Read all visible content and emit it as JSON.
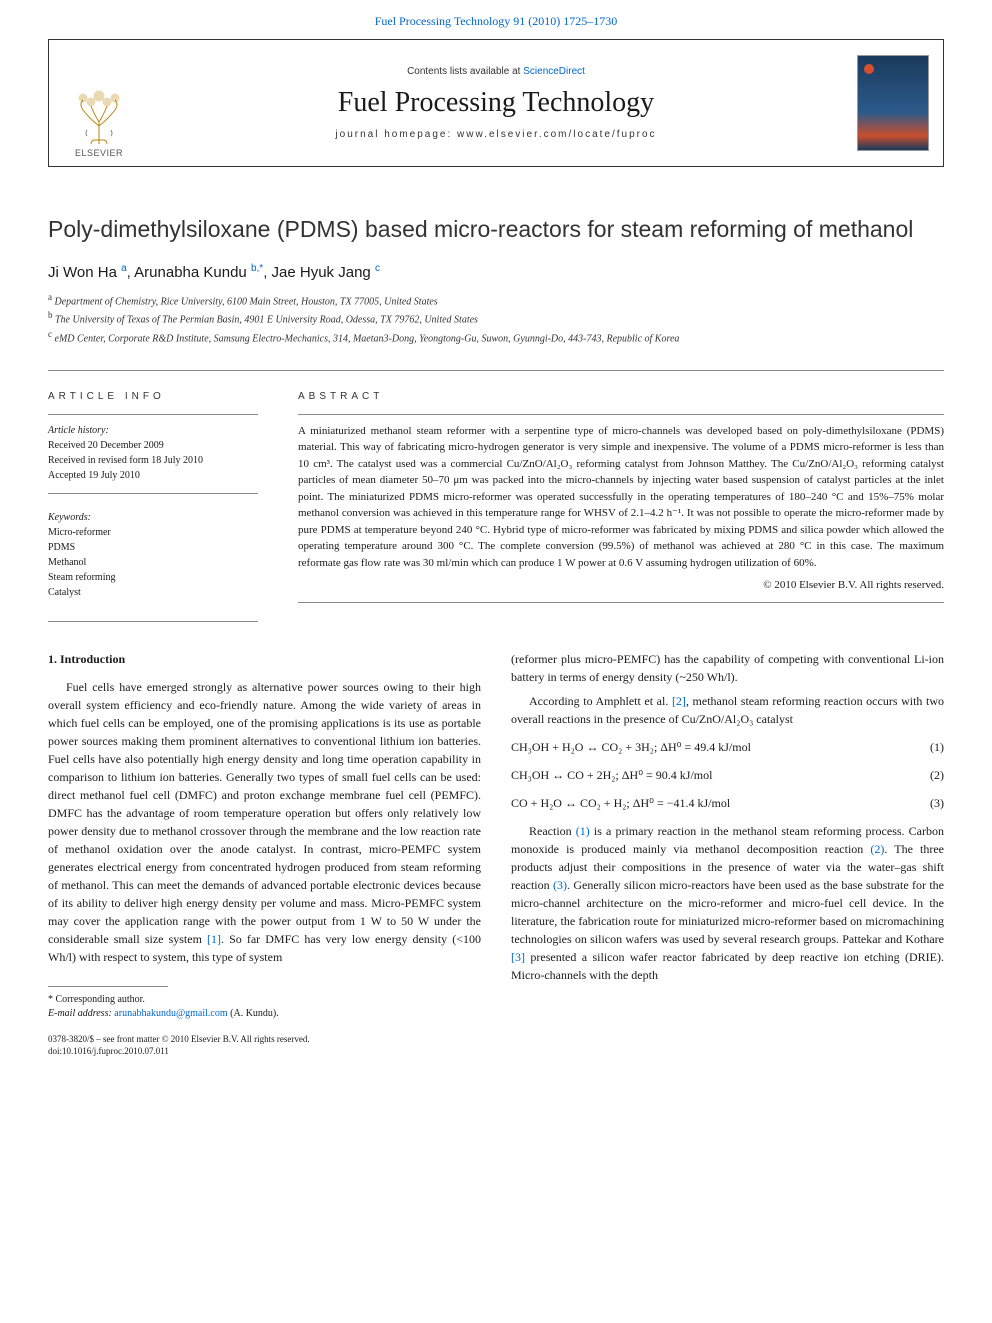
{
  "journal_link": "Fuel Processing Technology 91 (2010) 1725–1730",
  "masthead": {
    "contents_prefix": "Contents lists available at ",
    "contents_link": "ScienceDirect",
    "journal_name": "Fuel Processing Technology",
    "homepage_prefix": "journal homepage: ",
    "homepage": "www.elsevier.com/locate/fuproc",
    "publisher": "ELSEVIER",
    "cover_title": "Fuel Processing Technology"
  },
  "article": {
    "title": "Poly-dimethylsiloxane (PDMS) based micro-reactors for steam reforming of methanol",
    "authors": [
      {
        "name": "Ji Won Ha",
        "marks": "a"
      },
      {
        "name": "Arunabha Kundu",
        "marks": "b,*"
      },
      {
        "name": "Jae Hyuk Jang",
        "marks": "c"
      }
    ],
    "affiliations": [
      {
        "mark": "a",
        "text": "Department of Chemistry, Rice University, 6100 Main Street, Houston, TX 77005, United States"
      },
      {
        "mark": "b",
        "text": "The University of Texas of The Permian Basin, 4901 E University Road, Odessa, TX 79762, United States"
      },
      {
        "mark": "c",
        "text": "eMD Center, Corporate R&D Institute, Samsung Electro-Mechanics, 314, Maetan3-Dong, Yeongtong-Gu, Suwon, Gyunngi-Do, 443-743, Republic of Korea"
      }
    ]
  },
  "meta": {
    "info_heading": "ARTICLE INFO",
    "abstract_heading": "ABSTRACT",
    "history_label": "Article history:",
    "history": [
      "Received 20 December 2009",
      "Received in revised form 18 July 2010",
      "Accepted 19 July 2010"
    ],
    "keywords_label": "Keywords:",
    "keywords": [
      "Micro-reformer",
      "PDMS",
      "Methanol",
      "Steam reforming",
      "Catalyst"
    ],
    "abstract": "A miniaturized methanol steam reformer with a serpentine type of micro-channels was developed based on poly-dimethylsiloxane (PDMS) material. This way of fabricating micro-hydrogen generator is very simple and inexpensive. The volume of a PDMS micro-reformer is less than 10 cm³. The catalyst used was a commercial Cu/ZnO/Al₂O₃ reforming catalyst from Johnson Matthey. The Cu/ZnO/Al₂O₃ reforming catalyst particles of mean diameter 50–70 μm was packed into the micro-channels by injecting water based suspension of catalyst particles at the inlet point. The miniaturized PDMS micro-reformer was operated successfully in the operating temperatures of 180–240 °C and 15%–75% molar methanol conversion was achieved in this temperature range for WHSV of 2.1–4.2 h⁻¹. It was not possible to operate the micro-reformer made by pure PDMS at temperature beyond 240 °C. Hybrid type of micro-reformer was fabricated by mixing PDMS and silica powder which allowed the operating temperature around 300 °C. The complete conversion (99.5%) of methanol was achieved at 280 °C in this case. The maximum reformate gas flow rate was 30 ml/min which can produce 1 W power at 0.6 V assuming hydrogen utilization of 60%.",
    "copyright": "© 2010 Elsevier B.V. All rights reserved."
  },
  "body": {
    "section_heading": "1. Introduction",
    "left_col": [
      "Fuel cells have emerged strongly as alternative power sources owing to their high overall system efficiency and eco-friendly nature. Among the wide variety of areas in which fuel cells can be employed, one of the promising applications is its use as portable power sources making them prominent alternatives to conventional lithium ion batteries. Fuel cells have also potentially high energy density and long time operation capability in comparison to lithium ion batteries. Generally two types of small fuel cells can be used: direct methanol fuel cell (DMFC) and proton exchange membrane fuel cell (PEMFC). DMFC has the advantage of room temperature operation but offers only relatively low power density due to methanol crossover through the membrane and the low reaction rate of methanol oxidation over the anode catalyst. In contrast, micro-PEMFC system generates electrical energy from concentrated hydrogen produced from steam reforming of methanol. This can meet the demands of advanced portable electronic devices because of its ability to deliver high energy density per volume and mass. Micro-PEMFC system may cover the application range with the power output from 1 W to 50 W under the considerable small size system [1]. So far DMFC has very low energy density (<100 Wh/l) with respect to system, this type of system"
    ],
    "right_col_intro": "(reformer plus micro-PEMFC) has the capability of competing with conventional Li-ion battery in terms of energy density (~250 Wh/l).",
    "right_col_p2": "According to Amphlett et al. [2], methanol steam reforming reaction occurs with two overall reactions in the presence of Cu/ZnO/Al₂O₃ catalyst",
    "equations": [
      {
        "formula": "CH₃OH + H₂O ↔ CO₂ + 3H₂; ΔH⁰ = 49.4 kJ/mol",
        "num": "(1)"
      },
      {
        "formula": "CH₃OH ↔ CO + 2H₂; ΔH⁰ = 90.4 kJ/mol",
        "num": "(2)"
      },
      {
        "formula": "CO + H₂O ↔ CO₂ + H₂; ΔH⁰ = −41.4 kJ/mol",
        "num": "(3)"
      }
    ],
    "right_col_p3": "Reaction (1) is a primary reaction in the methanol steam reforming process. Carbon monoxide is produced mainly via methanol decomposition reaction (2). The three products adjust their compositions in the presence of water via the water–gas shift reaction (3). Generally silicon micro-reactors have been used as the base substrate for the micro-channel architecture on the micro-reformer and micro-fuel cell device. In the literature, the fabrication route for miniaturized micro-reformer based on micromachining technologies on silicon wafers was used by several research groups. Pattekar and Kothare [3] presented a silicon wafer reactor fabricated by deep reactive ion etching (DRIE). Micro-channels with the depth"
  },
  "footnote": {
    "corr_label": "* Corresponding author.",
    "email_label": "E-mail address:",
    "email": "arunabhakundu@gmail.com",
    "email_who": "(A. Kundu)."
  },
  "footer": {
    "line1": "0378-3820/$ – see front matter © 2010 Elsevier B.V. All rights reserved.",
    "line2": "doi:10.1016/j.fuproc.2010.07.011"
  },
  "colors": {
    "link": "#0066cc",
    "text": "#1a1a1a",
    "rule": "#888888",
    "cover_top": "#1a3a5c",
    "cover_accent": "#c94f2e"
  }
}
